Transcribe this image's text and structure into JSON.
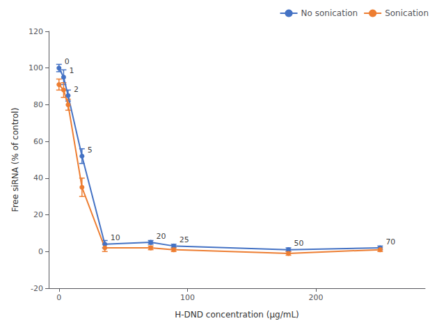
{
  "chart_data": {
    "type": "line",
    "xlabel": "H-DND concentration (μg/mL)",
    "ylabel": "Free siRNA (% of control)",
    "x": [
      0,
      3.6,
      7.1,
      17.9,
      35.7,
      71.4,
      89.3,
      178.6,
      250.0
    ],
    "series": [
      {
        "name": "No sonication",
        "color": "#4472C4",
        "values": [
          100,
          95,
          85,
          52,
          4,
          5,
          3,
          1,
          2
        ],
        "yerr": [
          2,
          4,
          3,
          4,
          2,
          1,
          1,
          1,
          1
        ]
      },
      {
        "name": "Sonication",
        "color": "#ED7D31",
        "values": [
          91,
          88,
          80,
          35,
          2,
          2,
          1,
          -1,
          1
        ],
        "yerr": [
          3,
          4,
          3,
          5,
          2,
          1,
          1,
          1,
          1
        ]
      }
    ],
    "annotations": [
      {
        "text": "0",
        "x": 0,
        "y": 100
      },
      {
        "text": "1",
        "x": 3.6,
        "y": 95
      },
      {
        "text": "2",
        "x": 7.1,
        "y": 85
      },
      {
        "text": "5",
        "x": 17.9,
        "y": 52
      },
      {
        "text": "10",
        "x": 35.7,
        "y": 4
      },
      {
        "text": "20",
        "x": 71.4,
        "y": 5
      },
      {
        "text": "25",
        "x": 89.3,
        "y": 3
      },
      {
        "text": "50",
        "x": 178.6,
        "y": 1
      },
      {
        "text": "70",
        "x": 250.0,
        "y": 2
      }
    ],
    "xlim": [
      -8,
      285
    ],
    "xticks": [
      0,
      100,
      200
    ],
    "ylim": [
      -20,
      120
    ],
    "yticks": [
      -20,
      0,
      20,
      40,
      60,
      80,
      100,
      120
    ],
    "marker": "o",
    "line_style": "solid",
    "legend": "upper right",
    "grid": false
  }
}
